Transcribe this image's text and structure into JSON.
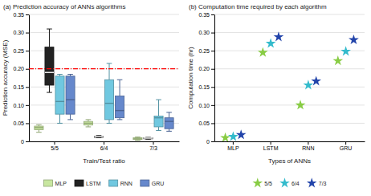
{
  "chart_data": [
    {
      "type": "box",
      "title": "(a) Prediction accuracy of ANNs algorithms",
      "xlabel": "Train/Test ratio",
      "ylabel": "Prediction accuracy (MSE)",
      "categories": [
        "5/5",
        "6/4",
        "7/3"
      ],
      "series": [
        {
          "name": "MLP",
          "color": "#c8e6a0",
          "values": [
            {
              "whislo": 0.025,
              "q1": 0.032,
              "med": 0.038,
              "q3": 0.042,
              "whishi": 0.046
            },
            {
              "whislo": 0.04,
              "q1": 0.045,
              "med": 0.05,
              "q3": 0.055,
              "whishi": 0.06
            },
            {
              "whislo": 0.003,
              "q1": 0.005,
              "med": 0.007,
              "q3": 0.01,
              "whishi": 0.012
            }
          ]
        },
        {
          "name": "LSTM",
          "color": "#222222",
          "values": [
            {
              "whislo": 0.135,
              "q1": 0.155,
              "med": 0.19,
              "q3": 0.26,
              "whishi": 0.31
            },
            {
              "whislo": 0.01,
              "q1": 0.011,
              "med": 0.013,
              "q3": 0.014,
              "whishi": 0.016
            },
            {
              "whislo": 0.006,
              "q1": 0.007,
              "med": 0.009,
              "q3": 0.01,
              "whishi": 0.011
            }
          ]
        },
        {
          "name": "RNN",
          "color": "#70c8e0",
          "values": [
            {
              "whislo": 0.05,
              "q1": 0.075,
              "med": 0.11,
              "q3": 0.18,
              "whishi": 0.185
            },
            {
              "whislo": 0.05,
              "q1": 0.06,
              "med": 0.105,
              "q3": 0.17,
              "whishi": 0.215
            },
            {
              "whislo": 0.03,
              "q1": 0.04,
              "med": 0.065,
              "q3": 0.07,
              "whishi": 0.115
            }
          ]
        },
        {
          "name": "GRU",
          "color": "#6688cc",
          "values": [
            {
              "whislo": 0.06,
              "q1": 0.075,
              "med": 0.115,
              "q3": 0.18,
              "whishi": 0.185
            },
            {
              "whislo": 0.06,
              "q1": 0.065,
              "med": 0.085,
              "q3": 0.125,
              "whishi": 0.17
            },
            {
              "whislo": 0.028,
              "q1": 0.035,
              "med": 0.055,
              "q3": 0.065,
              "whishi": 0.08
            }
          ]
        }
      ],
      "hline": {
        "value": 0.2,
        "color": "red",
        "line_style": "dashdot"
      },
      "ylim": [
        0,
        0.35
      ],
      "yticks": [
        0,
        0.05,
        {
          "value": 0.1,
          "label": "0.10"
        },
        0.15,
        {
          "value": 0.2,
          "label": "0.20"
        },
        0.25,
        {
          "value": 0.3,
          "label": "0.30"
        },
        0.35
      ],
      "grid": true,
      "legend": "bottom"
    },
    {
      "type": "scatter",
      "title": "(b) Computation time required by each algorithm",
      "xlabel": "Types of ANNs",
      "ylabel": "Computation time (hr)",
      "categories": [
        "MLP",
        "LSTM",
        "RNN",
        "GRU"
      ],
      "series": [
        {
          "name": "5/5",
          "color": "#88cc44",
          "marker": "star",
          "values": [
            0.01,
            0.245,
            0.1,
            0.222
          ]
        },
        {
          "name": "6/4",
          "color": "#33bbcc",
          "marker": "star",
          "values": [
            0.013,
            0.27,
            0.155,
            0.248
          ]
        },
        {
          "name": "7/3",
          "color": "#2244aa",
          "marker": "star",
          "values": [
            0.018,
            0.288,
            0.166,
            0.28
          ]
        }
      ],
      "ylim": [
        0,
        0.35
      ],
      "yticks": [
        0,
        0.05,
        {
          "value": 0.1,
          "label": "0.10"
        },
        0.15,
        {
          "value": 0.2,
          "label": "0.20"
        },
        0.25,
        {
          "value": 0.3,
          "label": "0.30"
        },
        0.35
      ],
      "grid": true,
      "legend": "bottom"
    }
  ]
}
